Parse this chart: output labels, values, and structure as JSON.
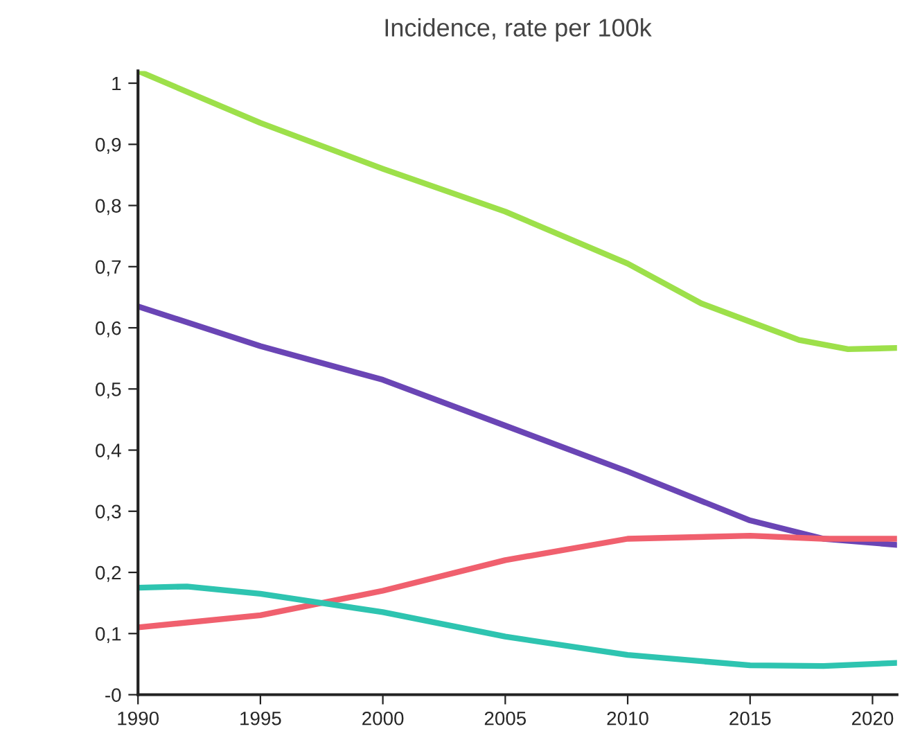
{
  "chart_data": {
    "type": "line",
    "title": "Incidence, rate per 100k",
    "xlim": [
      1990,
      2021
    ],
    "xticks": [
      1990,
      1995,
      2000,
      2005,
      2010,
      2015,
      2020
    ],
    "ylim": [
      0,
      1.02
    ],
    "yticks": [
      {
        "value": 0,
        "label": "-0"
      },
      {
        "value": 0.1,
        "label": "0,1"
      },
      {
        "value": 0.2,
        "label": "0,2"
      },
      {
        "value": 0.3,
        "label": "0,3"
      },
      {
        "value": 0.4,
        "label": "0,4"
      },
      {
        "value": 0.5,
        "label": "0,5"
      },
      {
        "value": 0.6,
        "label": "0,6"
      },
      {
        "value": 0.7,
        "label": "0,7"
      },
      {
        "value": 0.8,
        "label": "0,8"
      },
      {
        "value": 0.9,
        "label": "0,9"
      },
      {
        "value": 1,
        "label": "1"
      }
    ],
    "grid": false,
    "legend": false,
    "marker": "none",
    "line_style": "solid",
    "series": [
      {
        "color": "#9de04a",
        "x": [
          1990,
          1995,
          2000,
          2005,
          2010,
          2013,
          2015,
          2017,
          2019,
          2021
        ],
        "values": [
          1.02,
          0.935,
          0.86,
          0.79,
          0.705,
          0.64,
          0.61,
          0.58,
          0.565,
          0.567
        ]
      },
      {
        "color": "#6a45b5",
        "x": [
          1990,
          1995,
          2000,
          2005,
          2010,
          2015,
          2018,
          2021
        ],
        "values": [
          0.635,
          0.57,
          0.515,
          0.44,
          0.365,
          0.285,
          0.255,
          0.245
        ]
      },
      {
        "color": "#f0606e",
        "x": [
          1990,
          1995,
          2000,
          2005,
          2010,
          2015,
          2018,
          2021
        ],
        "values": [
          0.11,
          0.13,
          0.17,
          0.22,
          0.255,
          0.26,
          0.255,
          0.255
        ]
      },
      {
        "color": "#2ec4b0",
        "x": [
          1990,
          1992,
          1995,
          2000,
          2005,
          2010,
          2015,
          2018,
          2021
        ],
        "values": [
          0.175,
          0.177,
          0.165,
          0.135,
          0.095,
          0.065,
          0.048,
          0.047,
          0.052
        ]
      }
    ]
  }
}
